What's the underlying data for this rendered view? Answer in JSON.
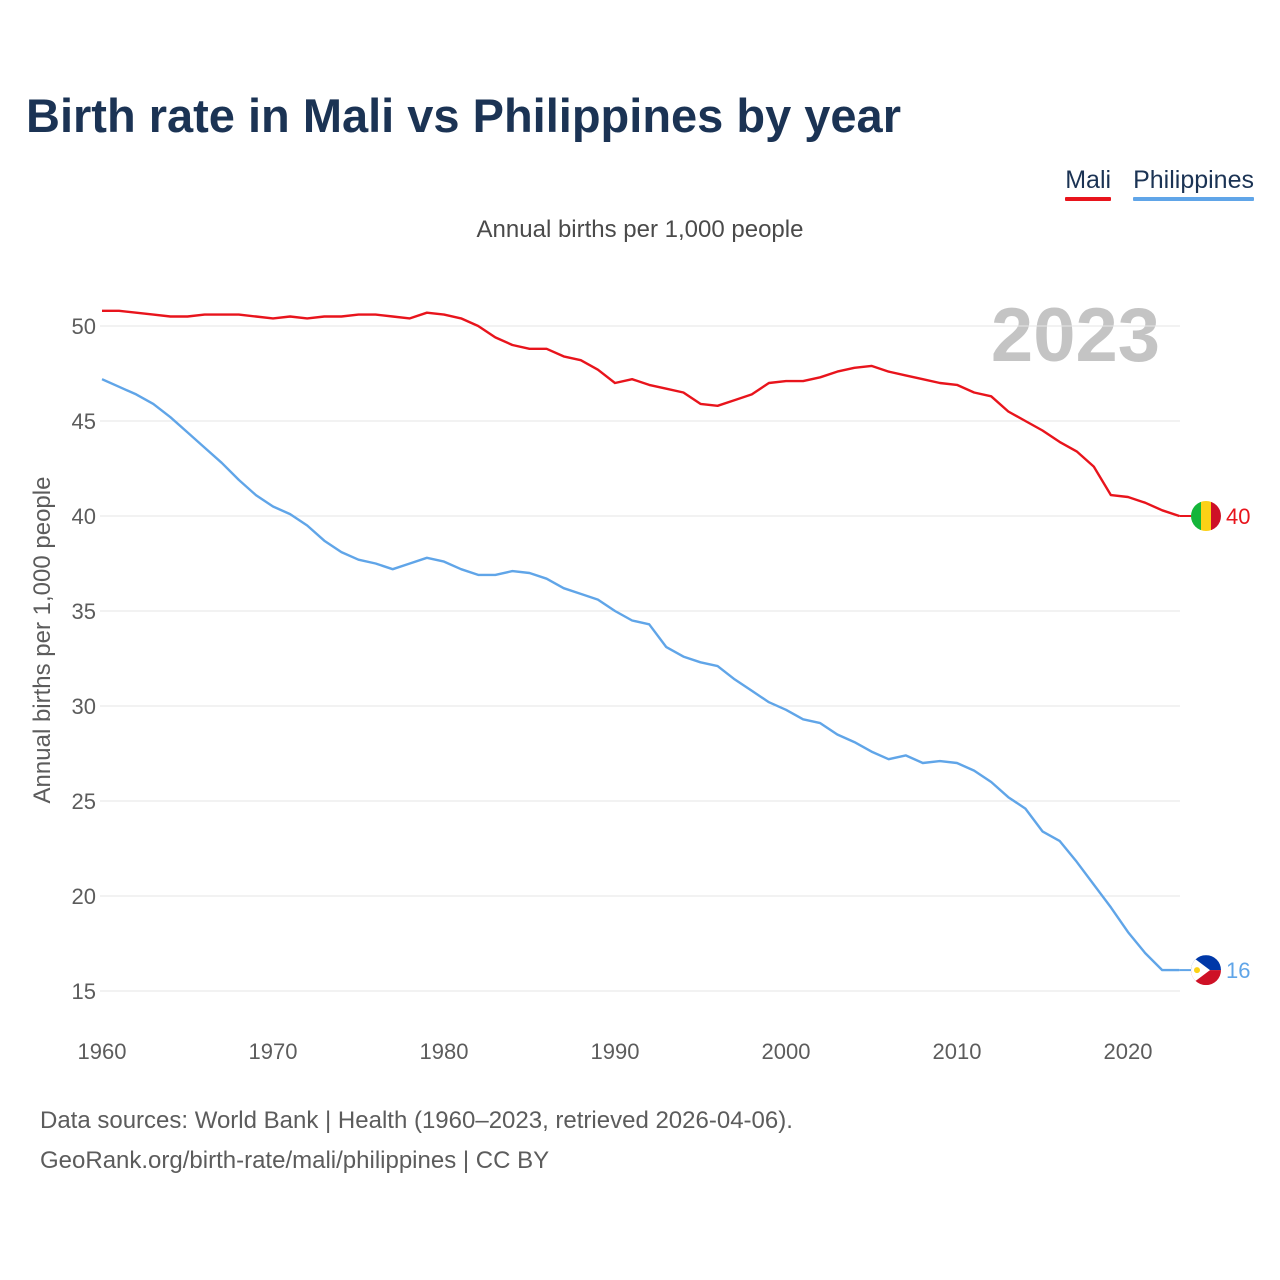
{
  "title": "Birth rate in Mali vs Philippines by year",
  "subtitle": "Annual births per 1,000 people",
  "year_badge": "2023",
  "legend": [
    {
      "label": "Mali",
      "color": "#e8141c"
    },
    {
      "label": "Philippines",
      "color": "#60a5e8"
    }
  ],
  "footer": {
    "line1": "Data sources: World Bank | Health (1960–2023, retrieved 2026-04-06).",
    "line2": "GeoRank.org/birth-rate/mali/philippines | CC BY"
  },
  "chart_data": {
    "type": "line",
    "title": "Birth rate in Mali vs Philippines by year",
    "xlabel": "",
    "ylabel": "Annual births per 1,000 people",
    "xlim": [
      1960,
      2023
    ],
    "ylim": [
      15,
      52
    ],
    "grid": true,
    "x_ticks": [
      1960,
      1970,
      1980,
      1990,
      2000,
      2010,
      2020
    ],
    "y_ticks": [
      15,
      20,
      25,
      30,
      35,
      40,
      45,
      50
    ],
    "x": [
      1960,
      1961,
      1962,
      1963,
      1964,
      1965,
      1966,
      1967,
      1968,
      1969,
      1970,
      1971,
      1972,
      1973,
      1974,
      1975,
      1976,
      1977,
      1978,
      1979,
      1980,
      1981,
      1982,
      1983,
      1984,
      1985,
      1986,
      1987,
      1988,
      1989,
      1990,
      1991,
      1992,
      1993,
      1994,
      1995,
      1996,
      1997,
      1998,
      1999,
      2000,
      2001,
      2002,
      2003,
      2004,
      2005,
      2006,
      2007,
      2008,
      2009,
      2010,
      2011,
      2012,
      2013,
      2014,
      2015,
      2016,
      2017,
      2018,
      2019,
      2020,
      2021,
      2022,
      2023
    ],
    "series": [
      {
        "name": "Mali",
        "color": "#e8141c",
        "end_label": "40",
        "values": [
          50.8,
          50.8,
          50.7,
          50.6,
          50.5,
          50.5,
          50.6,
          50.6,
          50.6,
          50.5,
          50.4,
          50.5,
          50.4,
          50.5,
          50.5,
          50.6,
          50.6,
          50.5,
          50.4,
          50.7,
          50.6,
          50.4,
          50.0,
          49.4,
          49.0,
          48.8,
          48.8,
          48.4,
          48.2,
          47.7,
          47.0,
          47.2,
          46.9,
          46.7,
          46.5,
          45.9,
          45.8,
          46.1,
          46.4,
          47.0,
          47.1,
          47.1,
          47.3,
          47.6,
          47.8,
          47.9,
          47.6,
          47.4,
          47.2,
          47.0,
          46.9,
          46.5,
          46.3,
          45.5,
          45.0,
          44.5,
          43.9,
          43.4,
          42.6,
          41.1,
          41.0,
          40.7,
          40.3,
          40.0
        ]
      },
      {
        "name": "Philippines",
        "color": "#60a5e8",
        "end_label": "16",
        "values": [
          47.2,
          46.8,
          46.4,
          45.9,
          45.2,
          44.4,
          43.6,
          42.8,
          41.9,
          41.1,
          40.5,
          40.1,
          39.5,
          38.7,
          38.1,
          37.7,
          37.5,
          37.2,
          37.5,
          37.8,
          37.6,
          37.2,
          36.9,
          36.9,
          37.1,
          37.0,
          36.7,
          36.2,
          35.9,
          35.6,
          35.0,
          34.5,
          34.3,
          33.1,
          32.6,
          32.3,
          32.1,
          31.4,
          30.8,
          30.2,
          29.8,
          29.3,
          29.1,
          28.5,
          28.1,
          27.6,
          27.2,
          27.4,
          27.0,
          27.1,
          27.0,
          26.6,
          26.0,
          25.2,
          24.6,
          23.4,
          22.9,
          21.8,
          20.6,
          19.4,
          18.1,
          17.0,
          16.1,
          16.1
        ]
      }
    ]
  }
}
